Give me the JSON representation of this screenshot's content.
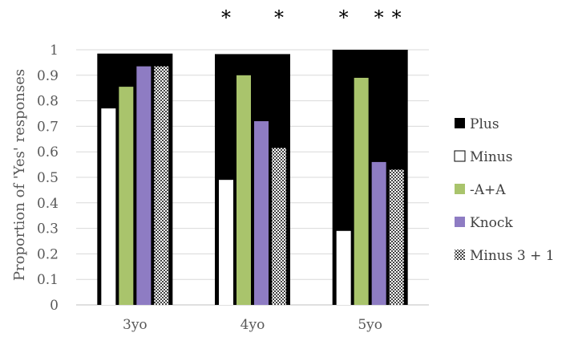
{
  "chart_data": {
    "type": "bar",
    "title": "",
    "ylabel": "Proportion of 'Yes' responses",
    "xlabel": "",
    "ylim": [
      0,
      1
    ],
    "yticks": [
      0,
      0.1,
      0.2,
      0.3,
      0.4,
      0.5,
      0.6,
      0.7,
      0.8,
      0.9,
      1
    ],
    "ytick_labels": [
      "0",
      "0.1",
      "0.2",
      "0.3",
      "0.4",
      "0.5",
      "0.6",
      "0.7",
      "0.8",
      "0.9",
      "1"
    ],
    "grid": true,
    "legend_position": "right",
    "categories": [
      "3yo",
      "4yo",
      "5yo"
    ],
    "series": [
      {
        "name": "Plus",
        "values": [
          0.985,
          0.983,
          1.0
        ],
        "color": "#000000",
        "pattern": "solid",
        "layout": "background"
      },
      {
        "name": "Minus",
        "values": [
          0.77,
          0.49,
          0.29
        ],
        "color": "#ffffff",
        "pattern": "solid",
        "layout": "inner"
      },
      {
        "name": "-A+A",
        "values": [
          0.855,
          0.9,
          0.89
        ],
        "color": "#a9c46c",
        "pattern": "solid",
        "layout": "inner"
      },
      {
        "name": "Knock",
        "values": [
          0.935,
          0.72,
          0.56
        ],
        "color": "#8e7cc3",
        "pattern": "solid",
        "layout": "inner"
      },
      {
        "name": "Minus 3 + 1",
        "values": [
          0.935,
          0.615,
          0.53
        ],
        "color": "#555555",
        "pattern": "checker",
        "layout": "inner"
      }
    ],
    "annotations": [
      {
        "text": "*",
        "category": "4yo",
        "series": "Minus"
      },
      {
        "text": "*",
        "category": "4yo",
        "series": "Minus 3 + 1"
      },
      {
        "text": "*",
        "category": "5yo",
        "series": "Minus"
      },
      {
        "text": "*",
        "category": "5yo",
        "series": "Knock"
      },
      {
        "text": "*",
        "category": "5yo",
        "series": "Minus 3 + 1"
      }
    ]
  }
}
